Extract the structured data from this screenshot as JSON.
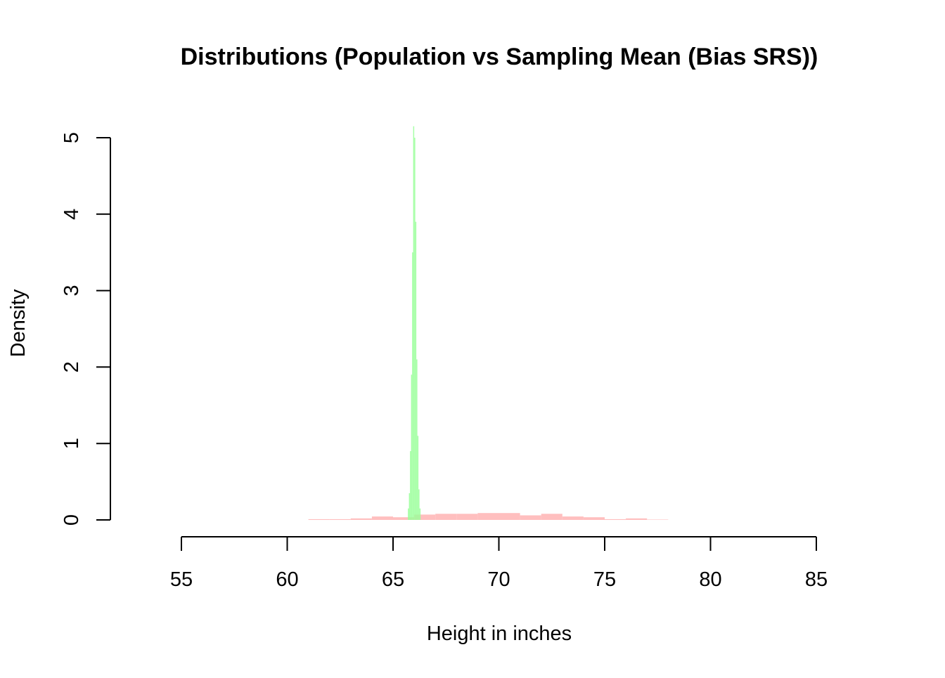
{
  "chart_data": {
    "type": "histogram",
    "title": "Distributions (Population vs Sampling Mean (Bias SRS))",
    "xlabel": "Height in inches",
    "ylabel": "Density",
    "xlim": [
      55,
      85
    ],
    "ylim": [
      0,
      5
    ],
    "x_ticks": [
      55,
      60,
      65,
      70,
      75,
      80,
      85
    ],
    "y_ticks": [
      0,
      1,
      2,
      3,
      4,
      5
    ],
    "grid": false,
    "series": [
      {
        "name": "Population",
        "color": "#FFBFBF",
        "bin_edges": [
          61,
          62,
          63,
          64,
          65,
          66,
          67,
          68,
          69,
          70,
          71,
          72,
          73,
          74,
          75,
          76,
          77,
          78
        ],
        "values": [
          0.01,
          0.01,
          0.02,
          0.045,
          0.035,
          0.07,
          0.08,
          0.08,
          0.09,
          0.09,
          0.06,
          0.08,
          0.045,
          0.035,
          0.01,
          0.02,
          0.005
        ]
      },
      {
        "name": "Sampling Mean (Bias SRS)",
        "color": "#99FF99",
        "bin_edges": [
          65.7,
          65.75,
          65.8,
          65.85,
          65.9,
          65.95,
          66.0,
          66.05,
          66.1,
          66.15,
          66.2,
          66.25,
          66.3
        ],
        "values": [
          0.15,
          0.35,
          0.9,
          1.9,
          3.5,
          5.15,
          5.0,
          3.9,
          2.1,
          1.1,
          0.4,
          0.15
        ]
      }
    ]
  }
}
